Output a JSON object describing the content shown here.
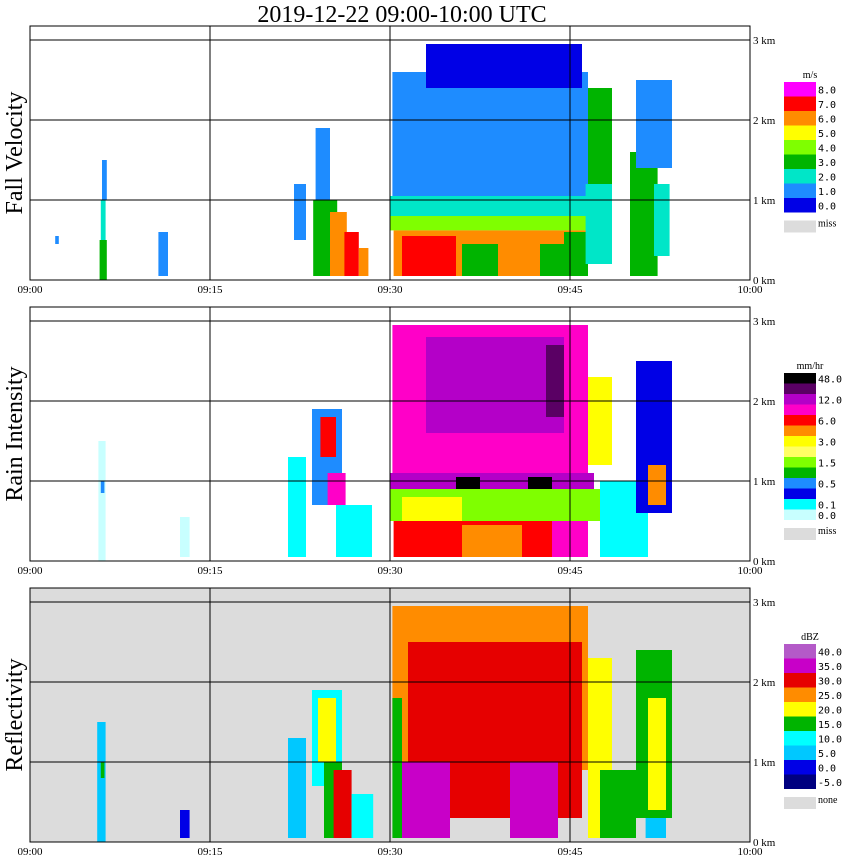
{
  "title": "2019-12-22   09:00-10:00 UTC",
  "x_ticks": [
    "09:00",
    "09:15",
    "09:30",
    "09:45",
    "10:00"
  ],
  "y_ticks": [
    "0 km",
    "1 km",
    "2 km",
    "3 km"
  ],
  "chart_data": [
    {
      "type": "heatmap",
      "ylabel": "Fall Velocity",
      "unit": "m/s",
      "legend": [
        {
          "label": "8.0",
          "color": "#ff00ff"
        },
        {
          "label": "7.0",
          "color": "#ff0000"
        },
        {
          "label": "6.0",
          "color": "#ff8c00"
        },
        {
          "label": "5.0",
          "color": "#ffff00"
        },
        {
          "label": "4.0",
          "color": "#7fff00"
        },
        {
          "label": "3.0",
          "color": "#00b400"
        },
        {
          "label": "2.0",
          "color": "#00e6c8"
        },
        {
          "label": "1.0",
          "color": "#1e8cff"
        },
        {
          "label": "0.0",
          "color": "#0000e6"
        }
      ],
      "missing_label": "miss",
      "missing_color": "#dcdcdc",
      "background": "#ffffff",
      "xlim_min": [
        0,
        60
      ],
      "ylim_km": [
        0,
        3.1
      ],
      "cells": [
        {
          "t": [
            5.8,
            6.4
          ],
          "h": [
            0.0,
            0.5
          ],
          "c": "#00b400"
        },
        {
          "t": [
            5.9,
            6.3
          ],
          "h": [
            0.5,
            1.0
          ],
          "c": "#00e6c8"
        },
        {
          "t": [
            6.0,
            6.4
          ],
          "h": [
            1.0,
            1.5
          ],
          "c": "#1e8cff"
        },
        {
          "t": [
            2.1,
            2.4
          ],
          "h": [
            0.45,
            0.55
          ],
          "c": "#1e8cff"
        },
        {
          "t": [
            10.7,
            11.5
          ],
          "h": [
            0.05,
            0.6
          ],
          "c": "#1e8cff"
        },
        {
          "t": [
            22.0,
            23.0
          ],
          "h": [
            0.5,
            1.2
          ],
          "c": "#1e8cff"
        },
        {
          "t": [
            23.8,
            25.0
          ],
          "h": [
            1.0,
            1.9
          ],
          "c": "#1e8cff"
        },
        {
          "t": [
            23.6,
            25.6
          ],
          "h": [
            0.05,
            1.0
          ],
          "c": "#00b400"
        },
        {
          "t": [
            25.0,
            26.4
          ],
          "h": [
            0.05,
            0.85
          ],
          "c": "#ff8c00"
        },
        {
          "t": [
            26.2,
            27.4
          ],
          "h": [
            0.05,
            0.6
          ],
          "c": "#ff0000"
        },
        {
          "t": [
            27.4,
            28.2
          ],
          "h": [
            0.05,
            0.4
          ],
          "c": "#ff8c00"
        },
        {
          "t": [
            30.2,
            46.5
          ],
          "h": [
            1.05,
            2.6
          ],
          "c": "#1e8cff"
        },
        {
          "t": [
            33.0,
            46.0
          ],
          "h": [
            2.4,
            2.95
          ],
          "c": "#0000e6"
        },
        {
          "t": [
            30.0,
            47.0
          ],
          "h": [
            0.8,
            1.05
          ],
          "c": "#00e6c8"
        },
        {
          "t": [
            30.0,
            47.5
          ],
          "h": [
            0.62,
            0.8
          ],
          "c": "#7fff00"
        },
        {
          "t": [
            30.3,
            46.5
          ],
          "h": [
            0.05,
            0.62
          ],
          "c": "#ff8c00"
        },
        {
          "t": [
            31.0,
            35.5
          ],
          "h": [
            0.05,
            0.55
          ],
          "c": "#ff0000"
        },
        {
          "t": [
            36.0,
            39.0
          ],
          "h": [
            0.05,
            0.45
          ],
          "c": "#00b400"
        },
        {
          "t": [
            39.0,
            42.5
          ],
          "h": [
            0.05,
            0.5
          ],
          "c": "#ff8c00"
        },
        {
          "t": [
            42.5,
            44.5
          ],
          "h": [
            0.05,
            0.45
          ],
          "c": "#00b400"
        },
        {
          "t": [
            44.5,
            46.5
          ],
          "h": [
            0.05,
            0.6
          ],
          "c": "#00b400"
        },
        {
          "t": [
            46.5,
            48.5
          ],
          "h": [
            1.2,
            2.4
          ],
          "c": "#00b400"
        },
        {
          "t": [
            46.3,
            48.5
          ],
          "h": [
            0.2,
            1.2
          ],
          "c": "#00e6c8"
        },
        {
          "t": [
            50.0,
            52.3
          ],
          "h": [
            0.05,
            1.6
          ],
          "c": "#00b400"
        },
        {
          "t": [
            50.5,
            53.5
          ],
          "h": [
            1.4,
            2.5
          ],
          "c": "#1e8cff"
        },
        {
          "t": [
            52.0,
            53.3
          ],
          "h": [
            0.3,
            1.2
          ],
          "c": "#00e6c8"
        }
      ]
    },
    {
      "type": "heatmap",
      "ylabel": "Rain Intensity",
      "unit": "mm/hr",
      "legend": [
        {
          "label": "48.0",
          "color": "#000000"
        },
        {
          "label": "",
          "color": "#5a0064"
        },
        {
          "label": "12.0",
          "color": "#b400c8"
        },
        {
          "label": "",
          "color": "#ff00c8"
        },
        {
          "label": "6.0",
          "color": "#ff0000"
        },
        {
          "label": "",
          "color": "#ff8c00"
        },
        {
          "label": "3.0",
          "color": "#ffff00"
        },
        {
          "label": "",
          "color": "#ffff64"
        },
        {
          "label": "1.5",
          "color": "#7fff00"
        },
        {
          "label": "",
          "color": "#00b400"
        },
        {
          "label": "0.5",
          "color": "#1e8cff"
        },
        {
          "label": "",
          "color": "#0000e6"
        },
        {
          "label": "0.1",
          "color": "#00ffff"
        },
        {
          "label": "0.0",
          "color": "#c8ffff"
        }
      ],
      "missing_label": "miss",
      "missing_color": "#dcdcdc",
      "background": "#ffffff",
      "xlim_min": [
        0,
        60
      ],
      "ylim_km": [
        0,
        3.1
      ],
      "cells": [
        {
          "t": [
            5.7,
            6.3
          ],
          "h": [
            0.0,
            1.5
          ],
          "c": "#c8ffff"
        },
        {
          "t": [
            5.9,
            6.2
          ],
          "h": [
            0.85,
            1.0
          ],
          "c": "#1e8cff"
        },
        {
          "t": [
            12.5,
            13.3
          ],
          "h": [
            0.05,
            0.55
          ],
          "c": "#c8ffff"
        },
        {
          "t": [
            21.5,
            23.0
          ],
          "h": [
            0.05,
            1.3
          ],
          "c": "#00ffff"
        },
        {
          "t": [
            23.5,
            26.0
          ],
          "h": [
            0.7,
            1.9
          ],
          "c": "#1e8cff"
        },
        {
          "t": [
            24.2,
            25.5
          ],
          "h": [
            1.3,
            1.8
          ],
          "c": "#ff0000"
        },
        {
          "t": [
            24.8,
            26.3
          ],
          "h": [
            0.7,
            1.1
          ],
          "c": "#ff00c8"
        },
        {
          "t": [
            25.5,
            28.5
          ],
          "h": [
            0.05,
            0.7
          ],
          "c": "#00ffff"
        },
        {
          "t": [
            30.2,
            46.5
          ],
          "h": [
            1.1,
            2.95
          ],
          "c": "#ff00c8"
        },
        {
          "t": [
            33.0,
            44.5
          ],
          "h": [
            1.6,
            2.8
          ],
          "c": "#b400c8"
        },
        {
          "t": [
            30.0,
            47.0
          ],
          "h": [
            0.9,
            1.1
          ],
          "c": "#b400c8"
        },
        {
          "t": [
            35.5,
            37.5
          ],
          "h": [
            0.9,
            1.05
          ],
          "c": "#000000"
        },
        {
          "t": [
            41.5,
            43.5
          ],
          "h": [
            0.9,
            1.05
          ],
          "c": "#000000"
        },
        {
          "t": [
            43.0,
            44.5
          ],
          "h": [
            1.8,
            2.7
          ],
          "c": "#5a0064"
        },
        {
          "t": [
            30.0,
            47.5
          ],
          "h": [
            0.5,
            0.9
          ],
          "c": "#7fff00"
        },
        {
          "t": [
            31.0,
            36.0
          ],
          "h": [
            0.5,
            0.8
          ],
          "c": "#ffff00"
        },
        {
          "t": [
            30.3,
            46.5
          ],
          "h": [
            0.05,
            0.5
          ],
          "c": "#ff0000"
        },
        {
          "t": [
            36.0,
            41.0
          ],
          "h": [
            0.05,
            0.45
          ],
          "c": "#ff8c00"
        },
        {
          "t": [
            43.5,
            46.5
          ],
          "h": [
            0.05,
            0.5
          ],
          "c": "#ff00c8"
        },
        {
          "t": [
            46.5,
            48.5
          ],
          "h": [
            1.2,
            2.3
          ],
          "c": "#ffff00"
        },
        {
          "t": [
            47.5,
            51.5
          ],
          "h": [
            0.05,
            1.0
          ],
          "c": "#00ffff"
        },
        {
          "t": [
            50.5,
            53.5
          ],
          "h": [
            0.6,
            2.5
          ],
          "c": "#0000e6"
        },
        {
          "t": [
            51.5,
            53.0
          ],
          "h": [
            0.7,
            1.2
          ],
          "c": "#ff8c00"
        }
      ]
    },
    {
      "type": "heatmap",
      "ylabel": "Reflectivity",
      "unit": "dBZ",
      "legend": [
        {
          "label": "40.0",
          "color": "#b45ac8"
        },
        {
          "label": "35.0",
          "color": "#c800c8"
        },
        {
          "label": "30.0",
          "color": "#e60000"
        },
        {
          "label": "25.0",
          "color": "#ff8c00"
        },
        {
          "label": "20.0",
          "color": "#ffff00"
        },
        {
          "label": "15.0",
          "color": "#00b400"
        },
        {
          "label": "10.0",
          "color": "#00ffff"
        },
        {
          "label": "5.0",
          "color": "#00c8ff"
        },
        {
          "label": "0.0",
          "color": "#0000e6"
        },
        {
          "label": "-5.0",
          "color": "#000080"
        }
      ],
      "missing_label": "none",
      "missing_color": "#dcdcdc",
      "background": "#dcdcdc",
      "xlim_min": [
        0,
        60
      ],
      "ylim_km": [
        0,
        3.1
      ],
      "cells": [
        {
          "t": [
            5.6,
            6.3
          ],
          "h": [
            0.0,
            1.5
          ],
          "c": "#00c8ff"
        },
        {
          "t": [
            5.9,
            6.2
          ],
          "h": [
            0.8,
            1.0
          ],
          "c": "#00b400"
        },
        {
          "t": [
            12.5,
            13.3
          ],
          "h": [
            0.05,
            0.4
          ],
          "c": "#0000e6"
        },
        {
          "t": [
            21.5,
            23.0
          ],
          "h": [
            0.05,
            1.3
          ],
          "c": "#00c8ff"
        },
        {
          "t": [
            23.5,
            26.0
          ],
          "h": [
            0.7,
            1.9
          ],
          "c": "#00ffff"
        },
        {
          "t": [
            24.0,
            25.5
          ],
          "h": [
            1.0,
            1.8
          ],
          "c": "#ffff00"
        },
        {
          "t": [
            24.5,
            26.0
          ],
          "h": [
            0.05,
            1.0
          ],
          "c": "#00b400"
        },
        {
          "t": [
            25.3,
            26.8
          ],
          "h": [
            0.05,
            0.9
          ],
          "c": "#e60000"
        },
        {
          "t": [
            26.8,
            28.6
          ],
          "h": [
            0.05,
            0.6
          ],
          "c": "#00ffff"
        },
        {
          "t": [
            30.2,
            46.5
          ],
          "h": [
            0.9,
            2.95
          ],
          "c": "#ff8c00"
        },
        {
          "t": [
            31.5,
            46.0
          ],
          "h": [
            0.3,
            2.5
          ],
          "c": "#e60000"
        },
        {
          "t": [
            31.0,
            35.0
          ],
          "h": [
            0.05,
            1.0
          ],
          "c": "#c800c8"
        },
        {
          "t": [
            40.0,
            44.0
          ],
          "h": [
            0.05,
            1.0
          ],
          "c": "#c800c8"
        },
        {
          "t": [
            30.2,
            31.0
          ],
          "h": [
            0.05,
            1.8
          ],
          "c": "#00b400"
        },
        {
          "t": [
            46.5,
            48.5
          ],
          "h": [
            0.05,
            2.3
          ],
          "c": "#ffff00"
        },
        {
          "t": [
            47.5,
            50.5
          ],
          "h": [
            0.05,
            0.9
          ],
          "c": "#00b400"
        },
        {
          "t": [
            50.5,
            53.5
          ],
          "h": [
            0.3,
            2.4
          ],
          "c": "#00b400"
        },
        {
          "t": [
            51.5,
            53.0
          ],
          "h": [
            0.4,
            1.8
          ],
          "c": "#ffff00"
        },
        {
          "t": [
            51.3,
            53.0
          ],
          "h": [
            0.05,
            0.3
          ],
          "c": "#00c8ff"
        }
      ]
    }
  ]
}
